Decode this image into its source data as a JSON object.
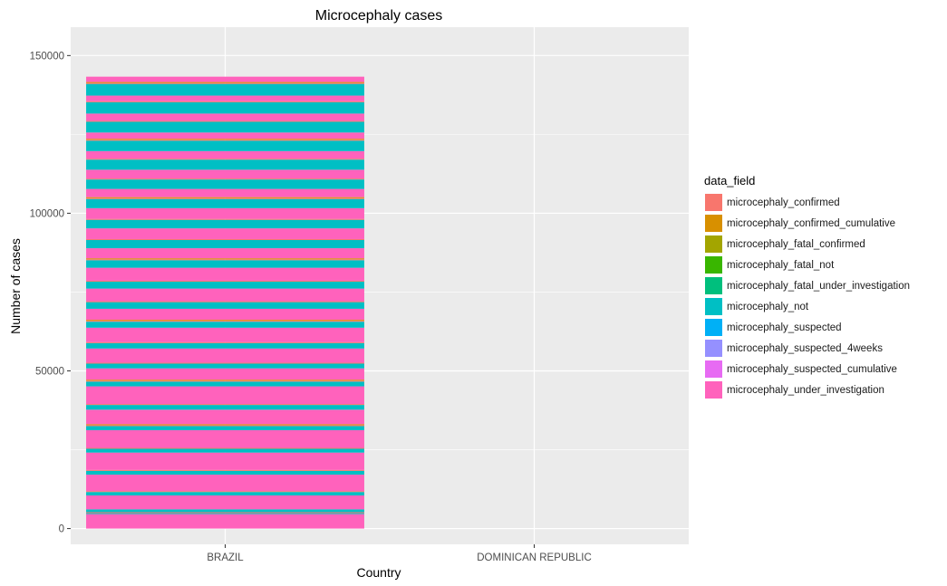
{
  "chart_data": {
    "type": "bar",
    "title": "Microcephaly cases",
    "xlabel": "Country",
    "ylabel": "Number of cases",
    "categories": [
      "BRAZIL",
      "DOMINICAN REPUBLIC"
    ],
    "ylim": [
      -5000,
      159000
    ],
    "yticks": [
      0,
      50000,
      100000,
      150000
    ],
    "yticklabels": [
      "0",
      "50000",
      "100000",
      "150000"
    ],
    "legend_title": "data_field",
    "legend_position": "right",
    "grid": true,
    "series": [
      {
        "name": "microcephaly_confirmed",
        "color": "#F8766D"
      },
      {
        "name": "microcephaly_confirmed_cumulative",
        "color": "#D89000"
      },
      {
        "name": "microcephaly_fatal_confirmed",
        "color": "#A3A500"
      },
      {
        "name": "microcephaly_fatal_not",
        "color": "#39B600"
      },
      {
        "name": "microcephaly_fatal_under_investigation",
        "color": "#00BF7D"
      },
      {
        "name": "microcephaly_not",
        "color": "#00BFC4"
      },
      {
        "name": "microcephaly_suspected",
        "color": "#00B0F6"
      },
      {
        "name": "microcephaly_suspected_4weeks",
        "color": "#9590FF"
      },
      {
        "name": "microcephaly_suspected_cumulative",
        "color": "#E76BF3"
      },
      {
        "name": "microcephaly_under_investigation",
        "color": "#FF62BC"
      }
    ],
    "stack_brazil": [
      [
        9,
        4600
      ],
      [
        5,
        300
      ],
      [
        0,
        300
      ],
      [
        5,
        900
      ],
      [
        9,
        4400
      ],
      [
        5,
        1100
      ],
      [
        0,
        300
      ],
      [
        9,
        5200
      ],
      [
        5,
        1200
      ],
      [
        0,
        300
      ],
      [
        9,
        5500
      ],
      [
        5,
        1200
      ],
      [
        0,
        300
      ],
      [
        9,
        5600
      ],
      [
        5,
        1300
      ],
      [
        0,
        300
      ],
      [
        1,
        300
      ],
      [
        9,
        4600
      ],
      [
        5,
        1500
      ],
      [
        0,
        300
      ],
      [
        9,
        5600
      ],
      [
        5,
        1500
      ],
      [
        0,
        300
      ],
      [
        1,
        300
      ],
      [
        9,
        3600
      ],
      [
        5,
        1500
      ],
      [
        0,
        300
      ],
      [
        9,
        4500
      ],
      [
        5,
        1700
      ],
      [
        0,
        300
      ],
      [
        9,
        4600
      ],
      [
        5,
        1900
      ],
      [
        0,
        300
      ],
      [
        1,
        300
      ],
      [
        9,
        3500
      ],
      [
        5,
        2100
      ],
      [
        0,
        300
      ],
      [
        9,
        4000
      ],
      [
        5,
        2200
      ],
      [
        0,
        300
      ],
      [
        9,
        4100
      ],
      [
        5,
        2400
      ],
      [
        0,
        300
      ],
      [
        1,
        300
      ],
      [
        9,
        3200
      ],
      [
        5,
        2600
      ],
      [
        0,
        300
      ],
      [
        9,
        3400
      ],
      [
        5,
        2700
      ],
      [
        0,
        300
      ],
      [
        9,
        3400
      ],
      [
        5,
        2900
      ],
      [
        0,
        300
      ],
      [
        1,
        300
      ],
      [
        9,
        2600
      ],
      [
        5,
        3000
      ],
      [
        0,
        300
      ],
      [
        9,
        2800
      ],
      [
        5,
        3200
      ],
      [
        0,
        300
      ],
      [
        9,
        2400
      ],
      [
        5,
        3300
      ],
      [
        0,
        300
      ],
      [
        1,
        300
      ],
      [
        9,
        2000
      ],
      [
        5,
        3400
      ],
      [
        0,
        300
      ],
      [
        9,
        2300
      ],
      [
        5,
        3600
      ],
      [
        0,
        300
      ],
      [
        9,
        1800
      ],
      [
        5,
        3700
      ],
      [
        0,
        300
      ],
      [
        1,
        300
      ],
      [
        9,
        1700
      ]
    ]
  }
}
